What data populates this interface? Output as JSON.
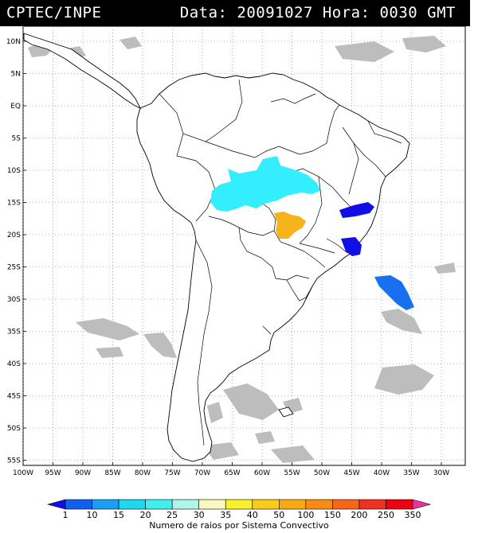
{
  "header": {
    "source": "CPTEC/INPE",
    "datetime": "Data: 20091027 Hora: 0030 GMT"
  },
  "map": {
    "lat_labels": [
      "10N",
      "5N",
      "EQ",
      "5S",
      "10S",
      "15S",
      "20S",
      "25S",
      "30S",
      "35S",
      "40S",
      "45S",
      "50S",
      "55S"
    ],
    "lon_labels": [
      "100W",
      "95W",
      "90W",
      "85W",
      "80W",
      "75W",
      "70W",
      "65W",
      "60W",
      "55W",
      "50W",
      "45W",
      "40W",
      "35W",
      "30W"
    ],
    "colors": {
      "land_fill": "#ffffff",
      "border": "#000000",
      "cloud": "#bdbdbd",
      "cyan_system": "#33eeff",
      "orange_system": "#f5b41c",
      "blue_system": "#1010e6",
      "light_blue_system": "#1670f0"
    }
  },
  "legend": {
    "labels": [
      "1",
      "10",
      "15",
      "20",
      "25",
      "30",
      "35",
      "40",
      "50",
      "100",
      "150",
      "200",
      "250",
      "350"
    ],
    "colors": [
      "#1010e6",
      "#1060f0",
      "#1aa0f2",
      "#20d8ee",
      "#40f0ee",
      "#b0f4e8",
      "#f8f8c0",
      "#f8f028",
      "#f8cc18",
      "#f8ac14",
      "#f88c14",
      "#f86418",
      "#f03020",
      "#f00010",
      "#f030a0"
    ],
    "caption": "Numero de raios por Sistema Convectivo"
  }
}
